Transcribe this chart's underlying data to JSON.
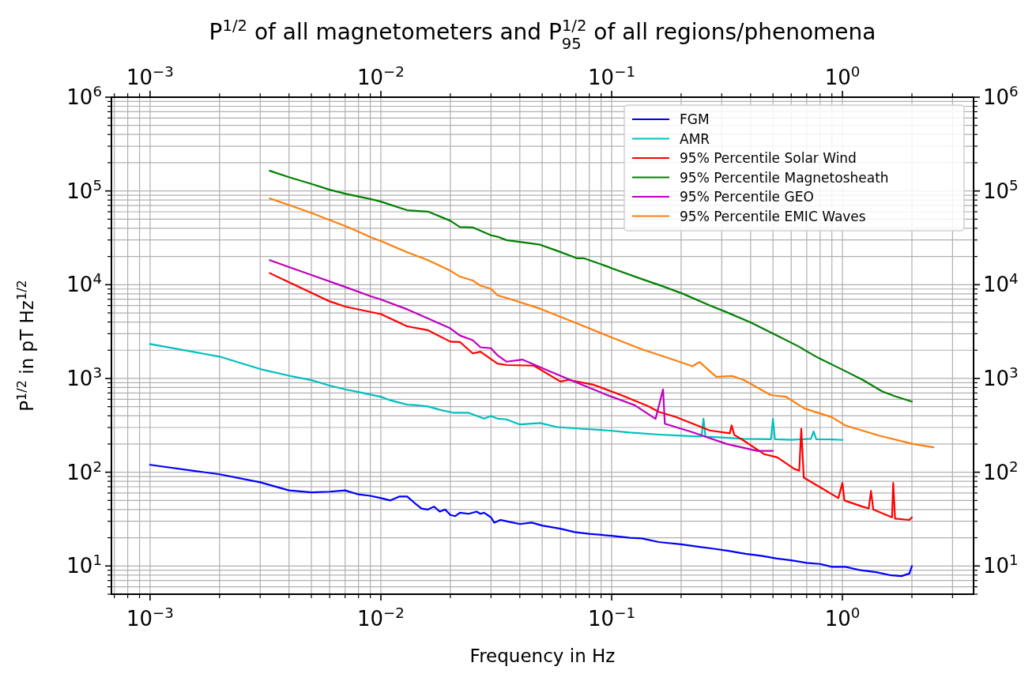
{
  "chart_data": {
    "type": "line",
    "title": "P$^{1/2}$ of all magnetometers and P$_{95}$$^{1/2}$ of all regions/phenomena",
    "xlabel": "Frequency in Hz",
    "ylabel": "P$^{1/2}$ in pT Hz$^{1/2}$",
    "log": "xy",
    "grid": true,
    "legend": "top right",
    "xlim": [
      0.00068,
      3.7
    ],
    "ylim": [
      5,
      1000000
    ],
    "xticks": [
      {
        "value": 0.001,
        "label": "10$^{−3}$"
      },
      {
        "value": 0.01,
        "label": "10$^{−2}$"
      },
      {
        "value": 0.1,
        "label": "10$^{−1}$"
      },
      {
        "value": 1,
        "label": "10$^{0}$"
      }
    ],
    "yticks": [
      {
        "value": 10,
        "label": "10$^{1}$"
      },
      {
        "value": 100,
        "label": "10$^{2}$"
      },
      {
        "value": 1000,
        "label": "10$^{3}$"
      },
      {
        "value": 10000,
        "label": "10$^{4}$"
      },
      {
        "value": 100000,
        "label": "10$^{5}$"
      },
      {
        "value": 1000000,
        "label": "10$^{6}$"
      }
    ],
    "series": [
      {
        "name": "FGM",
        "color": "#0000ff",
        "x": [
          0.001,
          0.002,
          0.003,
          0.004,
          0.005,
          0.006,
          0.007,
          0.008,
          0.009,
          0.01,
          0.011,
          0.012,
          0.013,
          0.014,
          0.015,
          0.016,
          0.017,
          0.018,
          0.019,
          0.02,
          0.021,
          0.022,
          0.024,
          0.026,
          0.027,
          0.028,
          0.03,
          0.031,
          0.033,
          0.035,
          0.04,
          0.045,
          0.05,
          0.06,
          0.069,
          0.08,
          0.1,
          0.12,
          0.135,
          0.16,
          0.2,
          0.24,
          0.27,
          0.32,
          0.38,
          0.45,
          0.52,
          0.6,
          0.7,
          0.8,
          0.9,
          1.03,
          1.2,
          1.4,
          1.6,
          1.8,
          1.95,
          2.0
        ],
        "values": [
          120,
          95,
          78,
          64,
          61,
          62,
          64,
          58,
          56,
          53,
          50,
          55,
          55,
          47,
          41,
          40,
          43,
          38,
          40,
          35,
          34,
          37,
          36,
          38,
          36,
          37,
          33,
          29,
          31,
          30,
          28,
          29,
          27,
          25,
          23,
          22,
          21,
          20,
          19.7,
          18,
          17,
          16,
          15.4,
          14.5,
          13.5,
          12.8,
          12,
          11.5,
          10.8,
          10.5,
          9.8,
          9.8,
          9,
          8.6,
          8,
          7.8,
          8.3,
          10
        ]
      },
      {
        "name": "AMR",
        "color": "#00bfbf",
        "x": [
          0.001,
          0.002,
          0.003,
          0.004,
          0.005,
          0.006,
          0.007,
          0.008,
          0.009,
          0.01,
          0.011,
          0.013,
          0.014,
          0.016,
          0.018,
          0.0207,
          0.024,
          0.026,
          0.028,
          0.03,
          0.032,
          0.035,
          0.04,
          0.049,
          0.058,
          0.075,
          0.096,
          0.12,
          0.16,
          0.2,
          0.245,
          0.25,
          0.255,
          0.3,
          0.373,
          0.49,
          0.5,
          0.51,
          0.6,
          0.73,
          0.75,
          0.77,
          0.9,
          1.0
        ],
        "values": [
          2330,
          1710,
          1260,
          1070,
          960,
          840,
          765,
          716,
          673,
          638,
          584,
          526,
          520,
          503,
          463,
          430,
          430,
          400,
          373,
          398,
          373,
          366,
          323,
          335,
          303,
          290,
          279,
          265,
          252,
          245,
          240,
          373,
          240,
          235,
          227,
          225,
          370,
          225,
          222,
          227,
          272,
          225,
          224,
          221
        ]
      },
      {
        "name": "95% Percentile Solar Wind",
        "color": "#ff0000",
        "x": [
          0.0033,
          0.004,
          0.005,
          0.006,
          0.007,
          0.009,
          0.01,
          0.013,
          0.016,
          0.02,
          0.022,
          0.025,
          0.027,
          0.032,
          0.035,
          0.046,
          0.06,
          0.065,
          0.084,
          0.11,
          0.144,
          0.16,
          0.19,
          0.266,
          0.325,
          0.331,
          0.34,
          0.373,
          0.457,
          0.523,
          0.62,
          0.65,
          0.663,
          0.68,
          0.81,
          0.96,
          1.0,
          1.02,
          1.22,
          1.3,
          1.33,
          1.36,
          1.55,
          1.64,
          1.66,
          1.69,
          1.95,
          2.0
        ],
        "values": [
          13300,
          10600,
          8200,
          6640,
          5840,
          5130,
          4860,
          3600,
          3270,
          2470,
          2450,
          1850,
          1930,
          1440,
          1390,
          1370,
          927,
          966,
          853,
          665,
          506,
          440,
          388,
          279,
          260,
          316,
          250,
          218,
          156,
          144,
          108,
          104,
          291,
          87.5,
          68,
          53,
          77,
          50,
          43,
          41,
          63,
          40,
          35,
          33,
          77,
          32,
          31,
          33
        ]
      },
      {
        "name": "95% Percentile Magnetosheath",
        "color": "#008000",
        "x": [
          0.0033,
          0.004,
          0.005,
          0.006,
          0.007,
          0.009,
          0.01,
          0.013,
          0.016,
          0.02,
          0.022,
          0.025,
          0.03,
          0.032,
          0.035,
          0.049,
          0.058,
          0.071,
          0.076,
          0.096,
          0.1,
          0.135,
          0.165,
          0.203,
          0.266,
          0.315,
          0.4,
          0.523,
          0.64,
          0.785,
          1.0,
          1.22,
          1.49,
          1.7,
          2.0
        ],
        "values": [
          164000,
          140000,
          119000,
          103000,
          93500,
          82100,
          77000,
          62300,
          60200,
          48100,
          41200,
          40800,
          33700,
          32500,
          29900,
          26700,
          23000,
          19100,
          19100,
          15600,
          15000,
          11500,
          9700,
          8030,
          6010,
          5090,
          3970,
          2850,
          2220,
          1660,
          1240,
          970,
          726,
          643,
          567
        ]
      },
      {
        "name": "95% Percentile GEO",
        "color": "#bf00bf",
        "x": [
          0.0033,
          0.004,
          0.005,
          0.007,
          0.009,
          0.01,
          0.013,
          0.016,
          0.02,
          0.022,
          0.025,
          0.027,
          0.03,
          0.032,
          0.035,
          0.041,
          0.054,
          0.069,
          0.096,
          0.126,
          0.155,
          0.167,
          0.17,
          0.224,
          0.315,
          0.427,
          0.5
        ],
        "values": [
          18300,
          15400,
          12700,
          9470,
          7550,
          6950,
          5470,
          4370,
          3420,
          2870,
          2560,
          2150,
          2100,
          1770,
          1510,
          1590,
          1190,
          925,
          663,
          518,
          371,
          764,
          329,
          267,
          200,
          169,
          169
        ]
      },
      {
        "name": "95% Percentile EMIC Waves",
        "color": "#ff7f0e",
        "x": [
          0.0033,
          0.004,
          0.005,
          0.006,
          0.007,
          0.008,
          0.009,
          0.01,
          0.013,
          0.016,
          0.02,
          0.022,
          0.025,
          0.027,
          0.03,
          0.032,
          0.035,
          0.049,
          0.069,
          0.096,
          0.135,
          0.183,
          0.224,
          0.24,
          0.284,
          0.334,
          0.373,
          0.489,
          0.57,
          0.686,
          0.899,
          1.03,
          1.44,
          2.02,
          2.48
        ],
        "values": [
          83200,
          70800,
          58300,
          49000,
          42300,
          36700,
          32200,
          29300,
          22200,
          18300,
          14100,
          12200,
          11100,
          9770,
          9040,
          7700,
          7230,
          5550,
          3970,
          2850,
          2050,
          1600,
          1350,
          1500,
          1040,
          1060,
          966,
          665,
          637,
          477,
          387,
          315,
          246,
          200,
          184
        ]
      }
    ]
  }
}
